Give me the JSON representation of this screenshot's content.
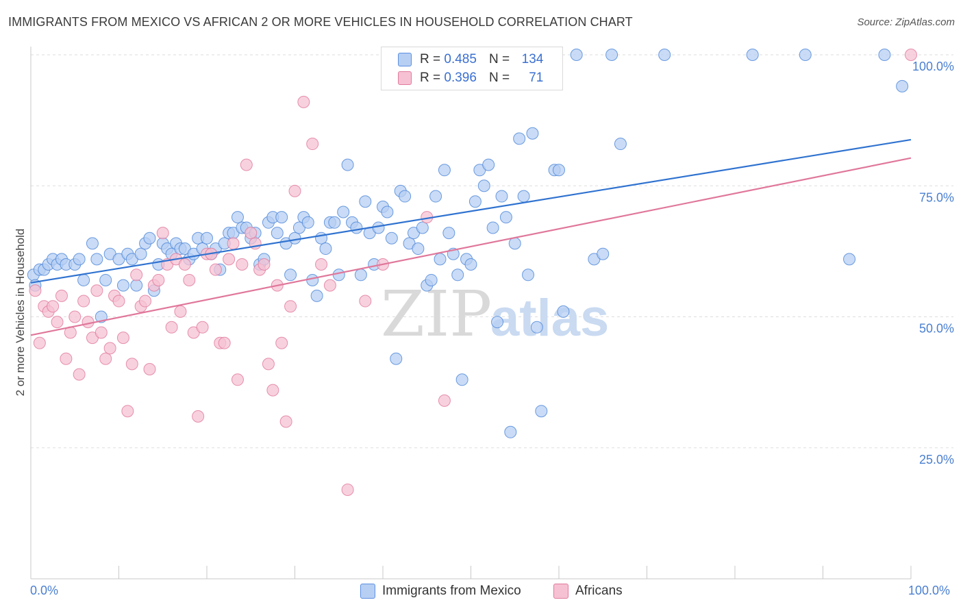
{
  "title": "IMMIGRANTS FROM MEXICO VS AFRICAN 2 OR MORE VEHICLES IN HOUSEHOLD CORRELATION CHART",
  "source": "Source: ZipAtlas.com",
  "watermark": {
    "zip": "ZIP",
    "atlas": "atlas"
  },
  "legend": {
    "r_label": "R =",
    "n_label": "N =",
    "rows": [
      {
        "name": "Immigrants from Mexico",
        "r": "0.485",
        "n": "134",
        "color": "#5b8fe0",
        "fill": "#b7cff3"
      },
      {
        "name": "Africans",
        "r": "0.396",
        "n": "71",
        "color": "#e07a9c",
        "fill": "#f6c1d3"
      }
    ]
  },
  "chart_data": {
    "type": "scatter",
    "ylabel": "2 or more Vehicles in Household",
    "xlabel": "",
    "xlim": [
      0,
      100
    ],
    "ylim": [
      0,
      100
    ],
    "x_tick_labels": [
      "0.0%",
      "100.0%"
    ],
    "y_ticks": [
      25,
      50,
      75,
      100
    ],
    "y_tick_labels": [
      "25.0%",
      "50.0%",
      "75.0%",
      "100.0%"
    ],
    "grid": "horizontal dashed",
    "legend_placement": "bottom-center",
    "series": [
      {
        "name": "Immigrants from Mexico",
        "color": "#4a84d8",
        "trend": {
          "x": [
            0,
            100
          ],
          "y": [
            56.5,
            83.8
          ]
        },
        "points": [
          [
            0.3,
            58
          ],
          [
            0.5,
            56
          ],
          [
            1,
            59
          ],
          [
            1.5,
            59
          ],
          [
            2,
            60
          ],
          [
            2.5,
            61
          ],
          [
            3,
            60
          ],
          [
            3.5,
            61
          ],
          [
            4,
            60
          ],
          [
            5,
            60
          ],
          [
            5.5,
            61
          ],
          [
            6,
            57
          ],
          [
            7,
            64
          ],
          [
            7.5,
            61
          ],
          [
            8,
            50
          ],
          [
            8.5,
            57
          ],
          [
            9,
            62
          ],
          [
            10,
            61
          ],
          [
            10.5,
            56
          ],
          [
            11,
            62
          ],
          [
            11.5,
            61
          ],
          [
            12,
            56
          ],
          [
            12.5,
            62
          ],
          [
            13,
            64
          ],
          [
            13.5,
            65
          ],
          [
            14,
            55
          ],
          [
            14.5,
            60
          ],
          [
            15,
            64
          ],
          [
            15.5,
            63
          ],
          [
            16,
            62
          ],
          [
            16.5,
            64
          ],
          [
            17,
            63
          ],
          [
            17.5,
            63
          ],
          [
            18,
            61
          ],
          [
            18.5,
            62
          ],
          [
            19,
            65
          ],
          [
            19.5,
            63
          ],
          [
            20,
            65
          ],
          [
            20.5,
            62
          ],
          [
            21,
            63
          ],
          [
            21.5,
            59
          ],
          [
            22,
            64
          ],
          [
            22.5,
            66
          ],
          [
            23,
            66
          ],
          [
            23.5,
            69
          ],
          [
            24,
            67
          ],
          [
            24.5,
            67
          ],
          [
            25,
            65
          ],
          [
            25.5,
            66
          ],
          [
            26,
            60
          ],
          [
            26.5,
            61
          ],
          [
            27,
            68
          ],
          [
            27.5,
            69
          ],
          [
            28,
            66
          ],
          [
            28.5,
            69
          ],
          [
            29,
            64
          ],
          [
            29.5,
            58
          ],
          [
            30,
            65
          ],
          [
            30.5,
            67
          ],
          [
            31,
            69
          ],
          [
            31.5,
            68
          ],
          [
            32,
            57
          ],
          [
            32.5,
            54
          ],
          [
            33,
            65
          ],
          [
            33.5,
            63
          ],
          [
            34,
            68
          ],
          [
            34.5,
            68
          ],
          [
            35,
            58
          ],
          [
            35.5,
            70
          ],
          [
            36,
            79
          ],
          [
            36.5,
            68
          ],
          [
            37,
            67
          ],
          [
            37.5,
            58
          ],
          [
            38,
            72
          ],
          [
            38.5,
            66
          ],
          [
            39,
            60
          ],
          [
            39.5,
            67
          ],
          [
            40,
            71
          ],
          [
            40.5,
            70
          ],
          [
            41,
            65
          ],
          [
            41.5,
            42
          ],
          [
            42,
            74
          ],
          [
            42.5,
            73
          ],
          [
            43,
            64
          ],
          [
            43.5,
            66
          ],
          [
            44,
            63
          ],
          [
            44.5,
            67
          ],
          [
            45,
            56
          ],
          [
            45.5,
            57
          ],
          [
            46,
            73
          ],
          [
            46.5,
            61
          ],
          [
            47,
            78
          ],
          [
            47.5,
            66
          ],
          [
            48,
            62
          ],
          [
            48.5,
            58
          ],
          [
            49,
            38
          ],
          [
            49.5,
            61
          ],
          [
            50,
            60
          ],
          [
            50.5,
            72
          ],
          [
            51,
            78
          ],
          [
            51.5,
            75
          ],
          [
            52,
            79
          ],
          [
            52.5,
            67
          ],
          [
            53,
            49
          ],
          [
            53.5,
            73
          ],
          [
            54,
            69
          ],
          [
            54.5,
            28
          ],
          [
            55,
            64
          ],
          [
            55.5,
            84
          ],
          [
            56,
            73
          ],
          [
            56.5,
            58
          ],
          [
            57,
            85
          ],
          [
            57.5,
            48
          ],
          [
            58,
            32
          ],
          [
            58.5,
            97
          ],
          [
            59,
            100
          ],
          [
            59.5,
            78
          ],
          [
            60,
            78
          ],
          [
            60.5,
            51
          ],
          [
            62,
            100
          ],
          [
            64,
            61
          ],
          [
            65,
            62
          ],
          [
            66,
            100
          ],
          [
            67,
            83
          ],
          [
            72,
            100
          ],
          [
            82,
            100
          ],
          [
            88,
            100
          ],
          [
            93,
            61
          ],
          [
            97,
            100
          ],
          [
            99,
            94
          ]
        ]
      },
      {
        "name": "Africans",
        "color": "#e0779a",
        "trend": {
          "x": [
            0,
            100
          ],
          "y": [
            46.5,
            80.3
          ]
        },
        "points": [
          [
            0.5,
            55
          ],
          [
            1,
            45
          ],
          [
            1.5,
            52
          ],
          [
            2,
            51
          ],
          [
            2.5,
            52
          ],
          [
            3,
            49
          ],
          [
            3.5,
            54
          ],
          [
            4,
            42
          ],
          [
            4.5,
            47
          ],
          [
            5,
            50
          ],
          [
            5.5,
            39
          ],
          [
            6,
            53
          ],
          [
            6.5,
            49
          ],
          [
            7,
            46
          ],
          [
            7.5,
            55
          ],
          [
            8,
            47
          ],
          [
            8.5,
            42
          ],
          [
            9,
            44
          ],
          [
            9.5,
            54
          ],
          [
            10,
            53
          ],
          [
            10.5,
            46
          ],
          [
            11,
            32
          ],
          [
            11.5,
            41
          ],
          [
            12,
            58
          ],
          [
            12.5,
            52
          ],
          [
            13,
            53
          ],
          [
            13.5,
            40
          ],
          [
            14,
            56
          ],
          [
            14.5,
            57
          ],
          [
            15,
            66
          ],
          [
            15.5,
            60
          ],
          [
            16,
            48
          ],
          [
            16.5,
            61
          ],
          [
            17,
            51
          ],
          [
            17.5,
            60
          ],
          [
            18,
            57
          ],
          [
            18.5,
            47
          ],
          [
            19,
            31
          ],
          [
            19.5,
            48
          ],
          [
            20,
            62
          ],
          [
            20.5,
            62
          ],
          [
            21,
            59
          ],
          [
            21.5,
            45
          ],
          [
            22,
            45
          ],
          [
            22.5,
            61
          ],
          [
            23,
            64
          ],
          [
            23.5,
            38
          ],
          [
            24,
            60
          ],
          [
            24.5,
            79
          ],
          [
            25,
            66
          ],
          [
            25.5,
            64
          ],
          [
            26,
            59
          ],
          [
            26.5,
            60
          ],
          [
            27,
            41
          ],
          [
            27.5,
            36
          ],
          [
            28,
            56
          ],
          [
            28.5,
            45
          ],
          [
            29,
            30
          ],
          [
            29.5,
            52
          ],
          [
            30,
            74
          ],
          [
            31,
            91
          ],
          [
            32,
            83
          ],
          [
            33,
            60
          ],
          [
            34,
            56
          ],
          [
            36,
            17
          ],
          [
            38,
            53
          ],
          [
            40,
            60
          ],
          [
            42,
            100
          ],
          [
            45,
            69
          ],
          [
            47,
            34
          ],
          [
            59,
            100
          ],
          [
            100,
            100
          ]
        ]
      }
    ]
  }
}
